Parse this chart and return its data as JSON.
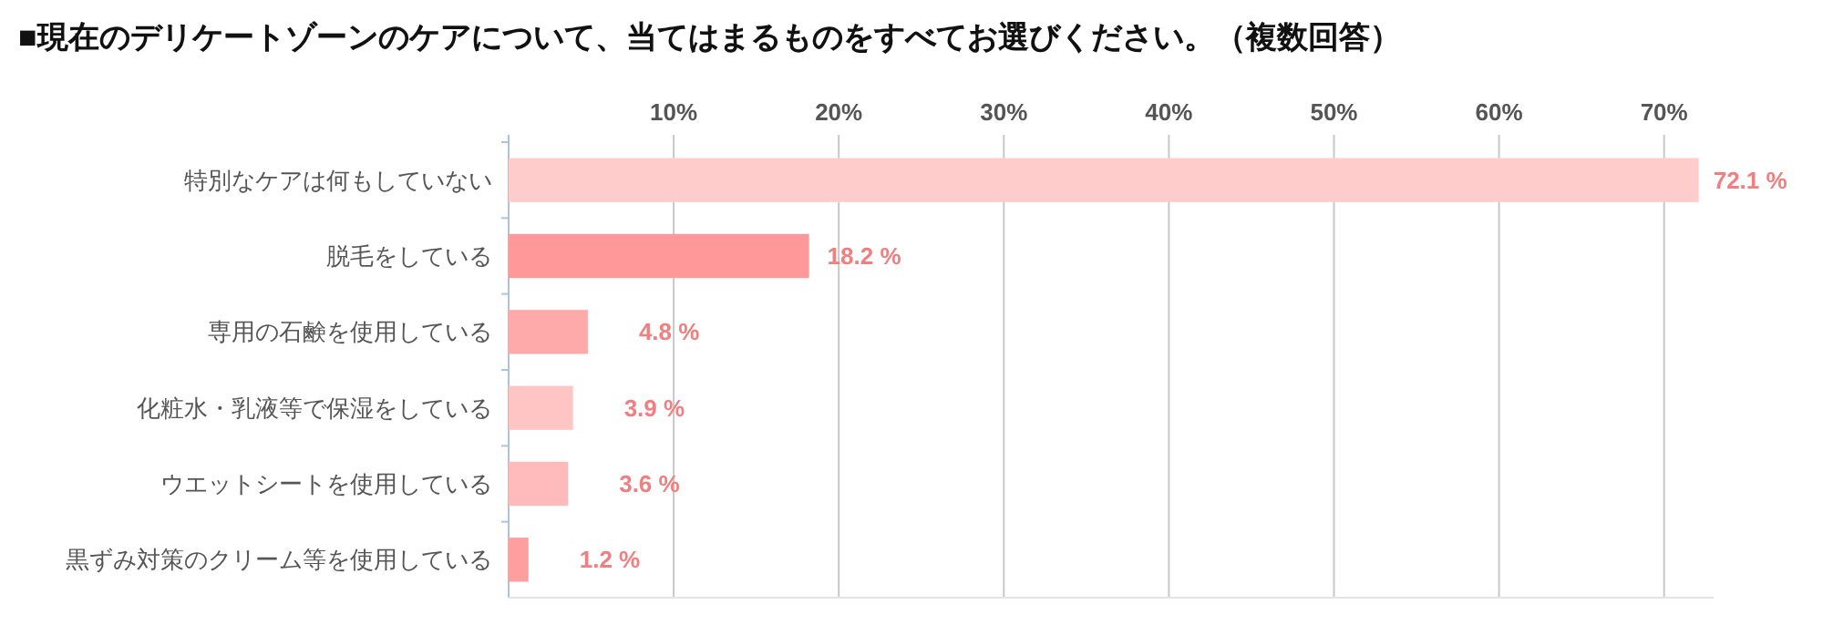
{
  "chart_data": {
    "type": "bar",
    "orientation": "horizontal",
    "title": "■現在のデリケートゾーンのケアについて、当てはまるものをすべてお選びください。（複数回答）",
    "categories": [
      "特別なケアは何もしていない",
      "脱毛をしている",
      "専用の石鹸を使用している",
      "化粧水・乳液等で保湿をしている",
      "ウエットシートを使用している",
      "黒ずみ対策のクリーム等を使用している"
    ],
    "values": [
      72.1,
      18.2,
      4.8,
      3.9,
      3.6,
      1.2
    ],
    "colors": [
      "#ffcccc",
      "#ff9999",
      "#ffaaaa",
      "#ffc4c4",
      "#ffbbbb",
      "#ff9e9e"
    ],
    "value_labels": [
      "72.1 %",
      "18.2 %",
      "4.8 %",
      "3.9 %",
      "3.6 %",
      "1.2 %"
    ],
    "xlim": [
      0,
      73
    ],
    "xticks": [
      {
        "value": 10,
        "label": "10%"
      },
      {
        "value": 20,
        "label": "20%"
      },
      {
        "value": 30,
        "label": "30%"
      },
      {
        "value": 40,
        "label": "40%"
      },
      {
        "value": 50,
        "label": "50%"
      },
      {
        "value": 60,
        "label": "60%"
      },
      {
        "value": 70,
        "label": "70%"
      }
    ],
    "grid": "x"
  }
}
